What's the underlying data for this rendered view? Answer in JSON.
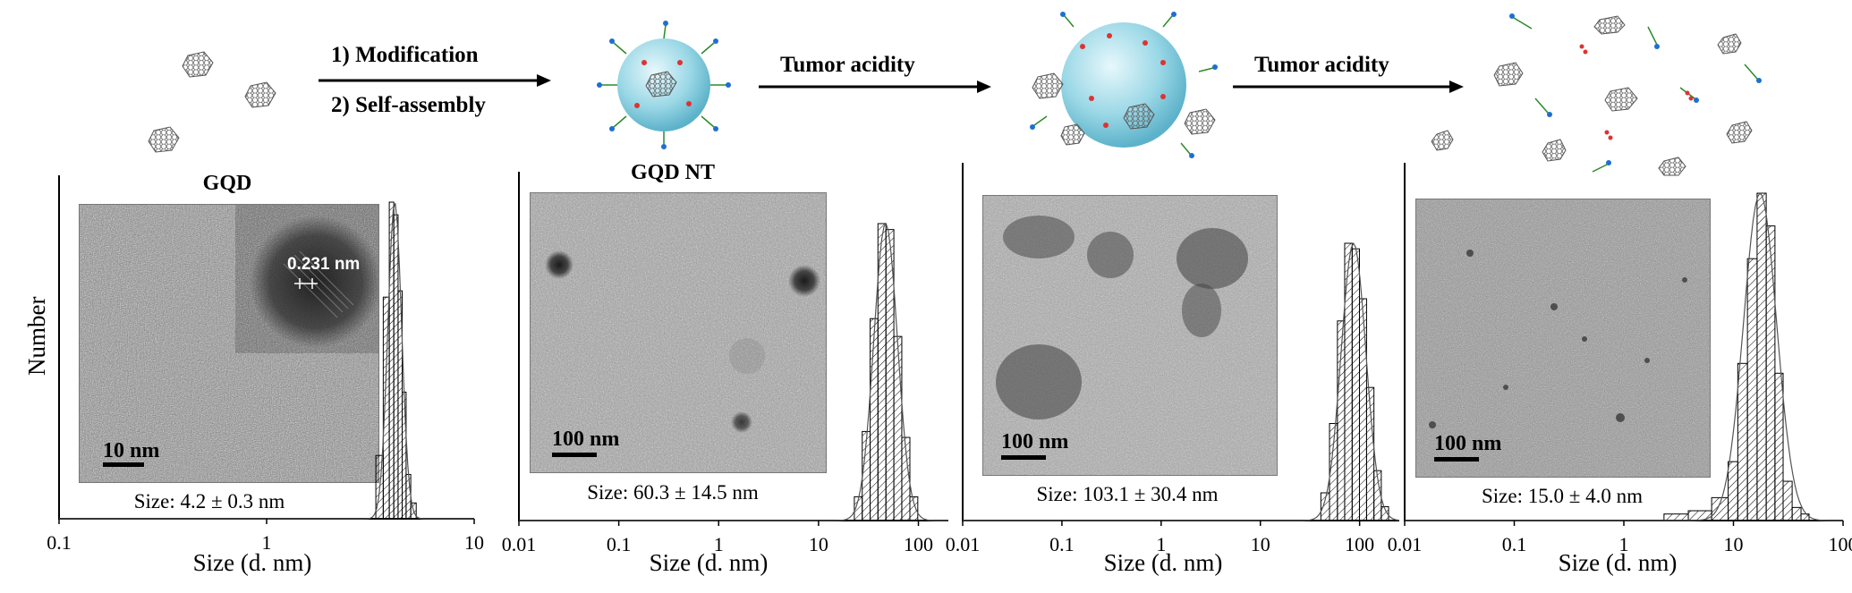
{
  "scheme": {
    "step1_line1": "1) Modification",
    "step1_line2": "2) Self-assembly",
    "step2": "Tumor acidity",
    "step3": "Tumor acidity"
  },
  "axis": {
    "ylabel": "Number",
    "xlabel": "Size (d. nm)"
  },
  "panels": [
    {
      "title": "GQD",
      "size_label": "Size: 4.2 ± 0.3 nm",
      "scale_bar": "10 nm",
      "lattice_label": "0.231 nm",
      "ticks": [
        "0.1",
        "1",
        "10"
      ]
    },
    {
      "title": "GQD NT",
      "size_label": "Size: 60.3 ± 14.5 nm",
      "scale_bar": "100 nm",
      "ticks": [
        "0.01",
        "0.1",
        "1",
        "10",
        "100"
      ]
    },
    {
      "title": "",
      "size_label": "Size: 103.1 ± 30.4 nm",
      "scale_bar": "100 nm",
      "ticks": [
        "0.01",
        "0.1",
        "1",
        "10",
        "100"
      ]
    },
    {
      "title": "",
      "size_label": "Size: 15.0 ± 4.0 nm",
      "scale_bar": "100 nm",
      "ticks": [
        "0.01",
        "0.1",
        "1",
        "10",
        "100"
      ]
    }
  ],
  "chart_data": [
    {
      "type": "bar",
      "title": "GQD",
      "xlabel": "Size (d. nm)",
      "ylabel": "Number",
      "xscale": "log",
      "xlim": [
        0.1,
        10
      ],
      "x": [
        3.5,
        3.8,
        4.0,
        4.2,
        4.4,
        4.6,
        4.8,
        5.1
      ],
      "values": [
        20,
        70,
        100,
        96,
        72,
        40,
        14,
        5
      ]
    },
    {
      "type": "bar",
      "title": "GQD NT",
      "xlabel": "Size (d. nm)",
      "ylabel": "Number",
      "xscale": "log",
      "xlim": [
        0.01,
        200
      ],
      "x": [
        25,
        30,
        36,
        43,
        52,
        62,
        75,
        90
      ],
      "values": [
        8,
        30,
        68,
        100,
        98,
        62,
        28,
        8
      ]
    },
    {
      "type": "bar",
      "title": "",
      "xlabel": "Size (d. nm)",
      "ylabel": "Number",
      "xscale": "log",
      "xlim": [
        0.01,
        250
      ],
      "x": [
        45,
        55,
        65,
        77,
        92,
        108,
        128,
        152,
        180
      ],
      "values": [
        10,
        35,
        72,
        100,
        98,
        80,
        48,
        18,
        5
      ]
    },
    {
      "type": "bar",
      "title": "",
      "xlabel": "Size (d. nm)",
      "ylabel": "Number",
      "xscale": "log",
      "xlim": [
        0.01,
        100
      ],
      "x": [
        3,
        5,
        8,
        10,
        12,
        15,
        18,
        22,
        26,
        31,
        38,
        45
      ],
      "values": [
        2,
        3,
        7,
        18,
        48,
        80,
        100,
        90,
        45,
        12,
        4,
        2
      ]
    }
  ]
}
